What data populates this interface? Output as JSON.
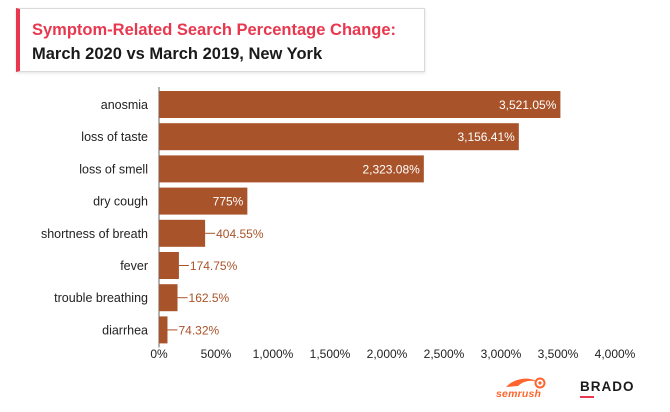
{
  "title": {
    "line1": "Symptom-Related Search Percentage Change:",
    "line2": "March 2020 vs March 2019, New York"
  },
  "colors": {
    "bar": "#a9532a",
    "title_accent": "#e8384f",
    "outside_label": "#a9532a",
    "inside_label": "#ffffff",
    "semrush": "#ff642d"
  },
  "logos": {
    "semrush": "semrush",
    "brado": "BRADO"
  },
  "chart_data": {
    "type": "bar",
    "orientation": "horizontal",
    "categories": [
      "anosmia",
      "loss of taste",
      "loss of smell",
      "dry cough",
      "shortness of breath",
      "fever",
      "trouble breathing",
      "diarrhea"
    ],
    "values": [
      3521.05,
      3156.41,
      2323.08,
      775,
      404.55,
      174.75,
      162.5,
      74.32
    ],
    "value_labels": [
      "3,521.05%",
      "3,156.41%",
      "2,323.08%",
      "775%",
      "404.55%",
      "174.75%",
      "162.5%",
      "74.32%"
    ],
    "label_inside": [
      true,
      true,
      true,
      true,
      false,
      false,
      false,
      false
    ],
    "xlim": [
      0,
      4000
    ],
    "xticks": [
      0,
      500,
      1000,
      1500,
      2000,
      2500,
      3000,
      3500,
      4000
    ],
    "xtick_labels": [
      "0%",
      "500%",
      "1,000%",
      "1,500%",
      "2,000%",
      "2,500%",
      "3,000%",
      "3,500%",
      "4,000%"
    ],
    "grid": false,
    "legend": "none"
  }
}
